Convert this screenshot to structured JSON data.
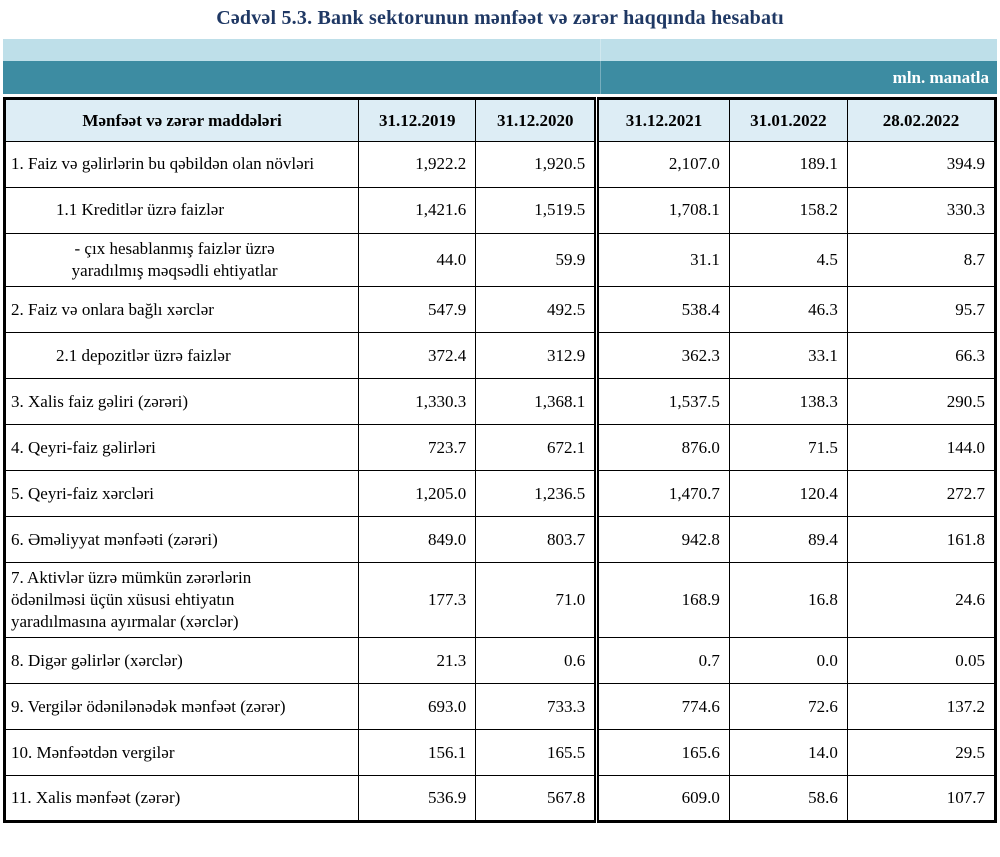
{
  "title": "Cədvəl 5.3. Bank sektorunun mənfəət və zərər haqqında hesabatı",
  "unit_label": "mln. manatla",
  "colors": {
    "title_text": "#1F3864",
    "band_light": "#BEDFE9",
    "band_teal": "#3D8CA2",
    "header_bg": "#DDEDF5",
    "border": "#000000"
  },
  "table": {
    "header": [
      "Mənfəət və zərər maddələri",
      "31.12.2019",
      "31.12.2020",
      "31.12.2021",
      "31.01.2022",
      "28.02.2022"
    ],
    "rows": [
      {
        "indent": "top",
        "label": "1. Faiz və gəlirlərin bu qəbildən olan növləri",
        "values": [
          "1,922.2",
          "1,920.5",
          "2,107.0",
          "189.1",
          "394.9"
        ]
      },
      {
        "indent": "sub",
        "label": "1.1 Kreditlər üzrə faizlər",
        "values": [
          "1,421.6",
          "1,519.5",
          "1,708.1",
          "158.2",
          "330.3"
        ]
      },
      {
        "indent": "dash",
        "label": "-  çıx hesablanmış faizlər üzrə\nyaradılmış məqsədli ehtiyatlar",
        "values": [
          "44.0",
          "59.9",
          "31.1",
          "4.5",
          "8.7"
        ]
      },
      {
        "indent": "top",
        "label": "2. Faiz və onlara bağlı xərclər",
        "values": [
          "547.9",
          "492.5",
          "538.4",
          "46.3",
          "95.7"
        ]
      },
      {
        "indent": "sub",
        "label": "2.1 depozitlər üzrə faizlər",
        "values": [
          "372.4",
          "312.9",
          "362.3",
          "33.1",
          "66.3"
        ]
      },
      {
        "indent": "top",
        "label": "3. Xalis faiz gəliri (zərəri)",
        "values": [
          "1,330.3",
          "1,368.1",
          "1,537.5",
          "138.3",
          "290.5"
        ]
      },
      {
        "indent": "top",
        "label": "4. Qeyri-faiz gəlirləri",
        "values": [
          "723.7",
          "672.1",
          "876.0",
          "71.5",
          "144.0"
        ]
      },
      {
        "indent": "top",
        "label": "5. Qeyri-faiz xərcləri",
        "values": [
          "1,205.0",
          "1,236.5",
          "1,470.7",
          "120.4",
          "272.7"
        ]
      },
      {
        "indent": "top",
        "label": "6. Əməliyyat mənfəəti (zərəri)",
        "values": [
          "849.0",
          "803.7",
          "942.8",
          "89.4",
          "161.8"
        ]
      },
      {
        "indent": "top",
        "label": "7. Aktivlər üzrə mümkün zərərlərin\nödənilməsi üçün xüsusi ehtiyatın\nyaradılmasına ayırmalar (xərclər)",
        "values": [
          "177.3",
          "71.0",
          "168.9",
          "16.8",
          "24.6"
        ]
      },
      {
        "indent": "top",
        "label": "8. Digər gəlirlər (xərclər)",
        "values": [
          "21.3",
          "0.6",
          "0.7",
          "0.0",
          "0.05"
        ]
      },
      {
        "indent": "top",
        "label": "9. Vergilər ödənilənədək mənfəət (zərər)",
        "values": [
          "693.0",
          "733.3",
          "774.6",
          "72.6",
          "137.2"
        ]
      },
      {
        "indent": "top",
        "label": "10. Mənfəətdən vergilər",
        "values": [
          "156.1",
          "165.5",
          "165.6",
          "14.0",
          "29.5"
        ]
      },
      {
        "indent": "top",
        "label": "11. Xalis mənfəət (zərər)",
        "values": [
          "536.9",
          "567.8",
          "609.0",
          "58.6",
          "107.7"
        ]
      }
    ]
  }
}
